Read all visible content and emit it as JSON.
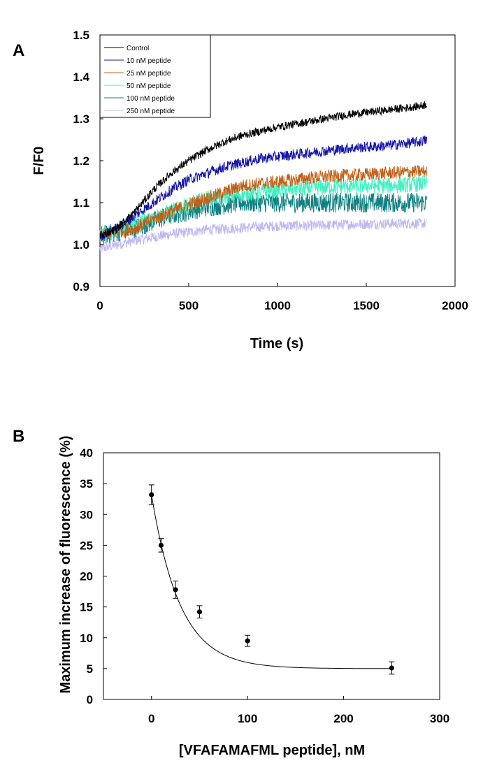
{
  "chart_data": [
    {
      "panel": "A",
      "type": "line",
      "title": "",
      "xlabel": "Time (s)",
      "ylabel": "F/F0",
      "xlim": [
        0,
        2000
      ],
      "ylim": [
        0.9,
        1.5
      ],
      "xticks": [
        0,
        500,
        1000,
        1500,
        2000
      ],
      "xtick_labels": [
        "0",
        "500",
        "1000",
        "1500",
        "2000"
      ],
      "yticks": [
        0.9,
        1.0,
        1.1,
        1.2,
        1.3,
        1.4,
        1.5
      ],
      "ytick_labels": [
        "0.9",
        "1.0",
        "1.1",
        "1.2",
        "1.3",
        "1.4",
        "1.5"
      ],
      "legend_position": "top-left",
      "series": [
        {
          "name": "Control",
          "color": "#000000",
          "noise": 0.006,
          "points": [
            [
              0,
              1.02
            ],
            [
              100,
              1.04
            ],
            [
              200,
              1.08
            ],
            [
              300,
              1.13
            ],
            [
              400,
              1.17
            ],
            [
              500,
              1.2
            ],
            [
              600,
              1.225
            ],
            [
              700,
              1.245
            ],
            [
              800,
              1.26
            ],
            [
              900,
              1.27
            ],
            [
              1000,
              1.28
            ],
            [
              1200,
              1.295
            ],
            [
              1400,
              1.31
            ],
            [
              1600,
              1.32
            ],
            [
              1800,
              1.33
            ],
            [
              1840,
              1.335
            ]
          ]
        },
        {
          "name": "10 nM peptide",
          "color": "#1515a8",
          "noise": 0.008,
          "points": [
            [
              0,
              1.02
            ],
            [
              100,
              1.04
            ],
            [
              200,
              1.07
            ],
            [
              300,
              1.1
            ],
            [
              400,
              1.13
            ],
            [
              500,
              1.155
            ],
            [
              600,
              1.17
            ],
            [
              700,
              1.185
            ],
            [
              800,
              1.195
            ],
            [
              900,
              1.205
            ],
            [
              1000,
              1.21
            ],
            [
              1200,
              1.22
            ],
            [
              1400,
              1.23
            ],
            [
              1600,
              1.235
            ],
            [
              1800,
              1.245
            ],
            [
              1840,
              1.25
            ]
          ]
        },
        {
          "name": "25 nM peptide",
          "color": "#c06018",
          "noise": 0.01,
          "points": [
            [
              0,
              1.02
            ],
            [
              200,
              1.04
            ],
            [
              400,
              1.08
            ],
            [
              600,
              1.11
            ],
            [
              800,
              1.14
            ],
            [
              1000,
              1.15
            ],
            [
              1200,
              1.16
            ],
            [
              1400,
              1.165
            ],
            [
              1600,
              1.17
            ],
            [
              1840,
              1.175
            ]
          ]
        },
        {
          "name": "50 nM peptide",
          "color": "#40f0c0",
          "noise": 0.012,
          "points": [
            [
              0,
              1.02
            ],
            [
              200,
              1.05
            ],
            [
              400,
              1.08
            ],
            [
              600,
              1.11
            ],
            [
              800,
              1.12
            ],
            [
              1000,
              1.13
            ],
            [
              1200,
              1.135
            ],
            [
              1400,
              1.14
            ],
            [
              1600,
              1.14
            ],
            [
              1840,
              1.145
            ]
          ]
        },
        {
          "name": "100 nM peptide",
          "color": "#108080",
          "noise": 0.015,
          "points": [
            [
              0,
              1.02
            ],
            [
              200,
              1.04
            ],
            [
              400,
              1.07
            ],
            [
              600,
              1.09
            ],
            [
              800,
              1.1
            ],
            [
              1000,
              1.1
            ],
            [
              1200,
              1.1
            ],
            [
              1400,
              1.1
            ],
            [
              1600,
              1.1
            ],
            [
              1840,
              1.1
            ]
          ]
        },
        {
          "name": "250 nM peptide",
          "color": "#c0b8f0",
          "noise": 0.008,
          "points": [
            [
              0,
              0.99
            ],
            [
              200,
              1.01
            ],
            [
              400,
              1.025
            ],
            [
              600,
              1.035
            ],
            [
              800,
              1.04
            ],
            [
              1000,
              1.045
            ],
            [
              1200,
              1.045
            ],
            [
              1400,
              1.048
            ],
            [
              1600,
              1.05
            ],
            [
              1840,
              1.05
            ]
          ]
        }
      ]
    },
    {
      "panel": "B",
      "type": "scatter",
      "title": "",
      "xlabel": "[VFAFAMAFML peptide], nM",
      "ylabel": "Maximum increase of fluorescence (%)",
      "xlim": [
        -50,
        300
      ],
      "ylim": [
        0,
        40
      ],
      "xticks": [
        0,
        100,
        200,
        300
      ],
      "xtick_labels": [
        "0",
        "100",
        "200",
        "300"
      ],
      "yticks": [
        0,
        5,
        10,
        15,
        20,
        25,
        30,
        35,
        40
      ],
      "ytick_labels": [
        "0",
        "5",
        "10",
        "15",
        "20",
        "25",
        "30",
        "35",
        "40"
      ],
      "points": [
        {
          "x": 0,
          "y": 33.2,
          "err": 1.6
        },
        {
          "x": 10,
          "y": 25.0,
          "err": 1.1
        },
        {
          "x": 25,
          "y": 17.8,
          "err": 1.4
        },
        {
          "x": 50,
          "y": 14.2,
          "err": 1.0
        },
        {
          "x": 100,
          "y": 9.5,
          "err": 0.9
        },
        {
          "x": 250,
          "y": 5.1,
          "err": 1.0
        }
      ],
      "fit": {
        "model": "exponential decay",
        "y0": 5.0,
        "a": 28.2,
        "b": 0.0335,
        "x_range": [
          0,
          250
        ]
      }
    }
  ]
}
